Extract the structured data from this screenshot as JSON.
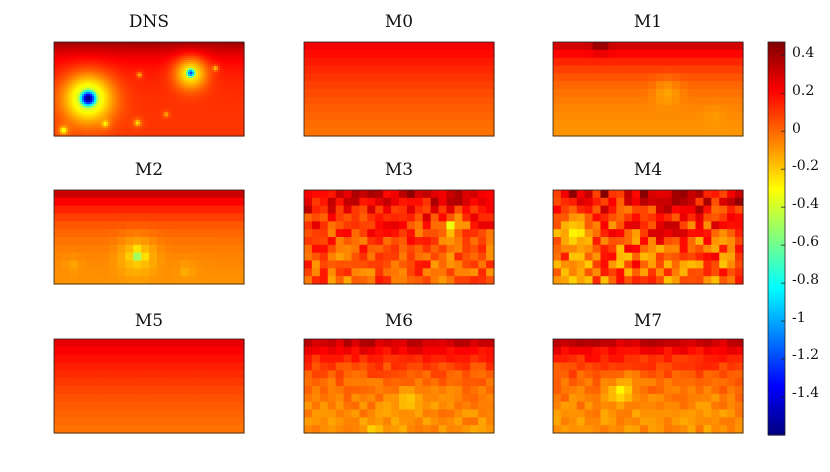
{
  "chart_data": {
    "type": "heatmap",
    "colormap": "jet",
    "panels": [
      {
        "title": "DNS",
        "field": {
          "base": 0.1,
          "top": 0.42,
          "top_depth": 0.2,
          "blocky": false,
          "blobs": [
            {
              "cx": 0.18,
              "cy": 0.6,
              "r": 0.07,
              "v": -1.6,
              "halo": 0.18
            },
            {
              "cx": 0.72,
              "cy": 0.33,
              "r": 0.04,
              "v": -1.2,
              "halo": 0.12
            },
            {
              "cx": 0.05,
              "cy": 0.94,
              "r": 0.03,
              "v": -0.35,
              "halo": 0.05
            },
            {
              "cx": 0.27,
              "cy": 0.87,
              "r": 0.025,
              "v": -0.3,
              "halo": 0.04
            },
            {
              "cx": 0.44,
              "cy": 0.86,
              "r": 0.025,
              "v": -0.25,
              "halo": 0.04
            },
            {
              "cx": 0.85,
              "cy": 0.28,
              "r": 0.02,
              "v": -0.2,
              "halo": 0.03
            },
            {
              "cx": 0.59,
              "cy": 0.77,
              "r": 0.02,
              "v": -0.15,
              "halo": 0.03
            },
            {
              "cx": 0.45,
              "cy": 0.35,
              "r": 0.02,
              "v": -0.15,
              "halo": 0.03
            }
          ]
        }
      },
      {
        "title": "M0",
        "field": {
          "base": -0.15,
          "top": 0.25,
          "top_depth": 0.85,
          "blocky": true,
          "blobs": []
        }
      },
      {
        "title": "M1",
        "field": {
          "base": -0.12,
          "top": 0.35,
          "top_depth": 0.35,
          "blocky": true,
          "blobs": [
            {
              "cx": 0.25,
              "cy": 0.02,
              "r": 0.06,
              "v": 0.45,
              "halo": 0.08
            },
            {
              "cx": 0.6,
              "cy": 0.55,
              "r": 0.1,
              "v": -0.12,
              "halo": 0.12
            },
            {
              "cx": 0.85,
              "cy": 0.8,
              "r": 0.08,
              "v": -0.1,
              "halo": 0.1
            }
          ]
        }
      },
      {
        "title": "M2",
        "field": {
          "base": -0.1,
          "top": 0.38,
          "top_depth": 0.3,
          "blocky": true,
          "blobs": [
            {
              "cx": 0.44,
              "cy": 0.7,
              "r": 0.06,
              "v": -0.5,
              "halo": 0.14
            },
            {
              "cx": 0.7,
              "cy": 0.85,
              "r": 0.05,
              "v": -0.15,
              "halo": 0.1
            },
            {
              "cx": 0.1,
              "cy": 0.8,
              "r": 0.06,
              "v": -0.12,
              "halo": 0.1
            }
          ]
        }
      },
      {
        "title": "M3",
        "field": {
          "base": 0.0,
          "top": 0.35,
          "top_depth": 0.35,
          "blocky": true,
          "noise": 0.15,
          "blobs": [
            {
              "cx": 0.78,
              "cy": 0.4,
              "r": 0.04,
              "v": -0.55,
              "halo": 0.1
            },
            {
              "cx": 0.2,
              "cy": 0.7,
              "r": 0.07,
              "v": -0.12,
              "halo": 0.1
            },
            {
              "cx": 0.5,
              "cy": 0.85,
              "r": 0.06,
              "v": -0.1,
              "halo": 0.1
            }
          ]
        }
      },
      {
        "title": "M4",
        "field": {
          "base": -0.05,
          "top": 0.3,
          "top_depth": 0.45,
          "blocky": true,
          "noise": 0.22,
          "blobs": [
            {
              "cx": 0.12,
              "cy": 0.45,
              "r": 0.12,
              "v": -0.3,
              "halo": 0.15
            },
            {
              "cx": 0.6,
              "cy": 0.4,
              "r": 0.08,
              "v": 0.35,
              "halo": 0.12
            },
            {
              "cx": 0.95,
              "cy": 0.35,
              "r": 0.08,
              "v": 0.2,
              "halo": 0.1
            }
          ]
        }
      },
      {
        "title": "M5",
        "field": {
          "base": -0.18,
          "top": 0.28,
          "top_depth": 0.9,
          "blocky": true,
          "blobs": []
        }
      },
      {
        "title": "M6",
        "field": {
          "base": -0.1,
          "top": 0.38,
          "top_depth": 0.3,
          "blocky": true,
          "noise": 0.06,
          "blobs": [
            {
              "cx": 0.55,
              "cy": 0.65,
              "r": 0.1,
              "v": -0.2,
              "halo": 0.15
            },
            {
              "cx": 0.38,
              "cy": 0.95,
              "r": 0.02,
              "v": -0.5,
              "halo": 0.05
            },
            {
              "cx": 0.1,
              "cy": 0.8,
              "r": 0.07,
              "v": -0.1,
              "halo": 0.1
            }
          ]
        }
      },
      {
        "title": "M7",
        "field": {
          "base": -0.1,
          "top": 0.38,
          "top_depth": 0.3,
          "blocky": true,
          "noise": 0.06,
          "blobs": [
            {
              "cx": 0.36,
              "cy": 0.55,
              "r": 0.08,
              "v": -0.3,
              "halo": 0.14
            },
            {
              "cx": 0.78,
              "cy": 0.7,
              "r": 0.06,
              "v": -0.12,
              "halo": 0.1
            }
          ]
        }
      }
    ],
    "colorbar": {
      "ticks": [
        "0.4",
        "0.2",
        "0",
        "-0.2",
        "-0.4",
        "-0.6",
        "-0.8",
        "-1",
        "-1.2",
        "-1.4"
      ],
      "tick_values": [
        0.4,
        0.2,
        0,
        -0.2,
        -0.4,
        -0.6,
        -0.8,
        -1.0,
        -1.2,
        -1.4
      ],
      "range": [
        -1.6,
        0.47
      ]
    }
  }
}
